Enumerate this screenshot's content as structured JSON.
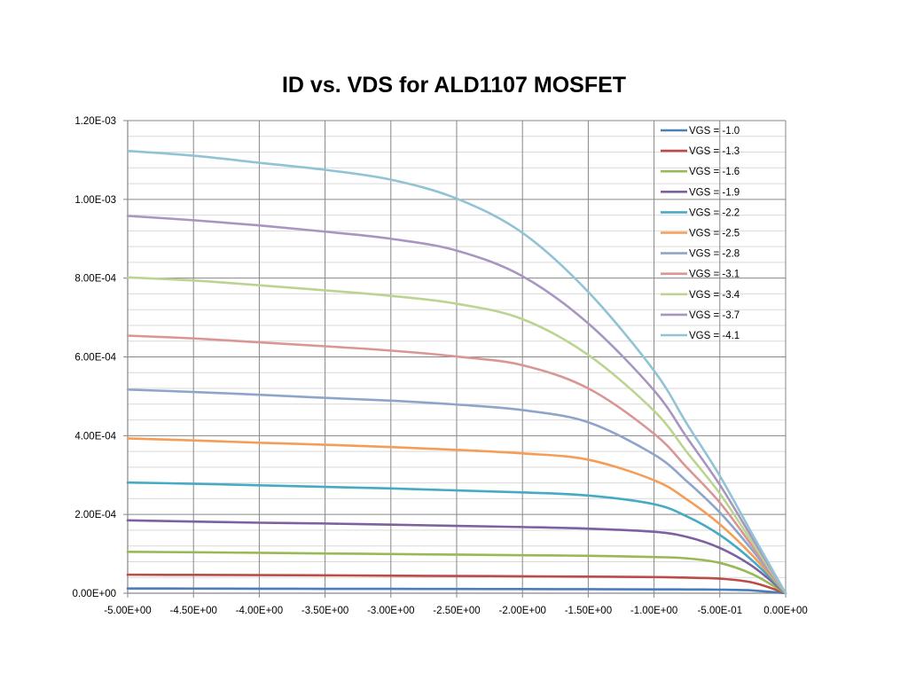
{
  "chart_data": {
    "type": "line",
    "title": "ID vs. VDS for ALD1107 MOSFET",
    "xlabel": "",
    "ylabel": "",
    "xlim": [
      -5.0,
      0.0
    ],
    "ylim": [
      0,
      0.0012
    ],
    "grid": true,
    "legend_position": "top-right (inside plot)",
    "x_ticks": [
      -5.0,
      -4.5,
      -4.0,
      -3.5,
      -3.0,
      -2.5,
      -2.0,
      -1.5,
      -1.0,
      -0.5,
      0.0
    ],
    "x_tick_labels": [
      "-5.00E+00",
      "-4.50E+00",
      "-4.00E+00",
      "-3.50E+00",
      "-3.00E+00",
      "-2.50E+00",
      "-2.00E+00",
      "-1.50E+00",
      "-1.00E+00",
      "-5.00E-01",
      "0.00E+00"
    ],
    "y_ticks": [
      0,
      0.0002,
      0.0004,
      0.0006,
      0.0008,
      0.001,
      0.0012
    ],
    "y_tick_labels": [
      "0.00E+00",
      "2.00E-04",
      "4.00E-04",
      "6.00E-04",
      "8.00E-04",
      "1.00E-03",
      "1.20E-03"
    ],
    "x": [
      -5.0,
      -4.5,
      -4.0,
      -3.5,
      -3.0,
      -2.5,
      -2.0,
      -1.5,
      -1.0,
      -0.75,
      -0.5,
      -0.25,
      0.0
    ],
    "series": [
      {
        "name": "VGS = -1.0",
        "color": "#4A7EBB",
        "values": [
          1.2e-05,
          1.18e-05,
          1.15e-05,
          1.12e-05,
          1.1e-05,
          1.08e-05,
          1.05e-05,
          1.02e-05,
          9.8e-06,
          9.5e-06,
          9e-06,
          7e-06,
          0
        ]
      },
      {
        "name": "VGS = -1.3",
        "color": "#BE4B48",
        "values": [
          4.7e-05,
          4.65e-05,
          4.6e-05,
          4.55e-05,
          4.45e-05,
          4.38e-05,
          4.3e-05,
          4.2e-05,
          4.1e-05,
          3.95e-05,
          3.7e-05,
          2.7e-05,
          0
        ]
      },
      {
        "name": "VGS = -1.6",
        "color": "#98B954",
        "values": [
          0.000105,
          0.000104,
          0.0001025,
          0.000101,
          9.95e-05,
          9.8e-05,
          9.65e-05,
          9.5e-05,
          9.2e-05,
          8.85e-05,
          7.7e-05,
          4.8e-05,
          0
        ]
      },
      {
        "name": "VGS = -1.9",
        "color": "#7D60A0",
        "values": [
          0.000185,
          0.000182,
          0.000179,
          0.000177,
          0.000174,
          0.000171,
          0.000168,
          0.000164,
          0.000156,
          0.000143,
          0.000115,
          6.8e-05,
          0
        ]
      },
      {
        "name": "VGS = -2.2",
        "color": "#46AAC5",
        "values": [
          0.000281,
          0.000278,
          0.000274,
          0.00027,
          0.000266,
          0.000261,
          0.000256,
          0.000248,
          0.000226,
          0.000195,
          0.000148,
          8.2e-05,
          0
        ]
      },
      {
        "name": "VGS = -2.5",
        "color": "#F59D56",
        "values": [
          0.000393,
          0.000388,
          0.000382,
          0.000377,
          0.000371,
          0.000364,
          0.000355,
          0.000339,
          0.000287,
          0.000238,
          0.000175,
          9.5e-05,
          0
        ]
      },
      {
        "name": "VGS = -2.8",
        "color": "#8EA5CB",
        "values": [
          0.000517,
          0.000511,
          0.000504,
          0.000496,
          0.000489,
          0.000479,
          0.000465,
          0.000434,
          0.000352,
          0.000284,
          0.000205,
          0.000108,
          0
        ]
      },
      {
        "name": "VGS = -3.1",
        "color": "#D99694",
        "values": [
          0.000654,
          0.000647,
          0.000637,
          0.000627,
          0.000616,
          0.000601,
          0.000579,
          0.00052,
          0.000405,
          0.000319,
          0.00023,
          0.000118,
          0
        ]
      },
      {
        "name": "VGS = -3.4",
        "color": "#BBD48F",
        "values": [
          0.000802,
          0.000794,
          0.000782,
          0.000769,
          0.000755,
          0.000735,
          0.000696,
          0.000605,
          0.000463,
          0.000358,
          0.000253,
          0.000127,
          0
        ]
      },
      {
        "name": "VGS = -3.7",
        "color": "#A896C0",
        "values": [
          0.000958,
          0.000947,
          0.000934,
          0.000918,
          0.0009,
          0.00087,
          0.000805,
          0.000685,
          0.000515,
          0.000395,
          0.000275,
          0.000138,
          0
        ]
      },
      {
        "name": "VGS = -4.1",
        "color": "#91C3D5",
        "values": [
          0.001123,
          0.001111,
          0.001093,
          0.001075,
          0.00105,
          0.001002,
          0.000915,
          0.000765,
          0.000565,
          0.00043,
          0.000298,
          0.000148,
          0
        ]
      }
    ]
  }
}
